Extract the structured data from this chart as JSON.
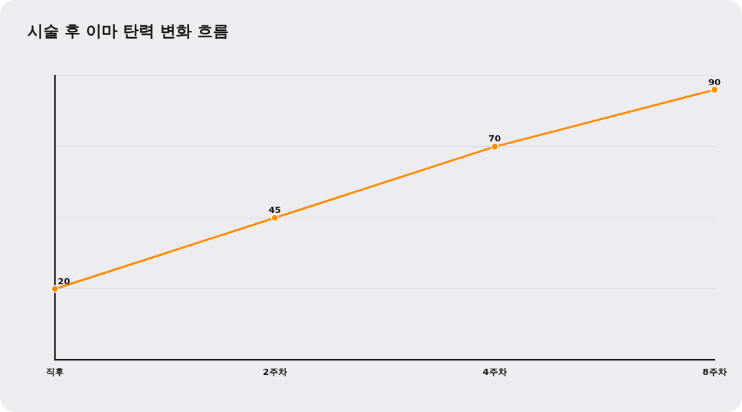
{
  "chart_data": {
    "type": "line",
    "title": "시술 후 이마 탄력 변화 흐름",
    "categories": [
      "직후",
      "2주차",
      "4주차",
      "8주차"
    ],
    "series": [
      {
        "color": "#ff8c00",
        "values": [
          20,
          45,
          70,
          90
        ]
      }
    ],
    "ylim": [
      -5,
      95
    ],
    "yticks": [
      {
        "value": -5,
        "label": null
      },
      {
        "value": 20,
        "label": null
      },
      {
        "value": 45,
        "label": null
      },
      {
        "value": 70,
        "label": null
      },
      {
        "value": 95,
        "label": null
      }
    ],
    "tick_labels": "x",
    "grid": "y",
    "marker": "circle",
    "line_style": "solid",
    "data_labels": true,
    "legend": false
  }
}
